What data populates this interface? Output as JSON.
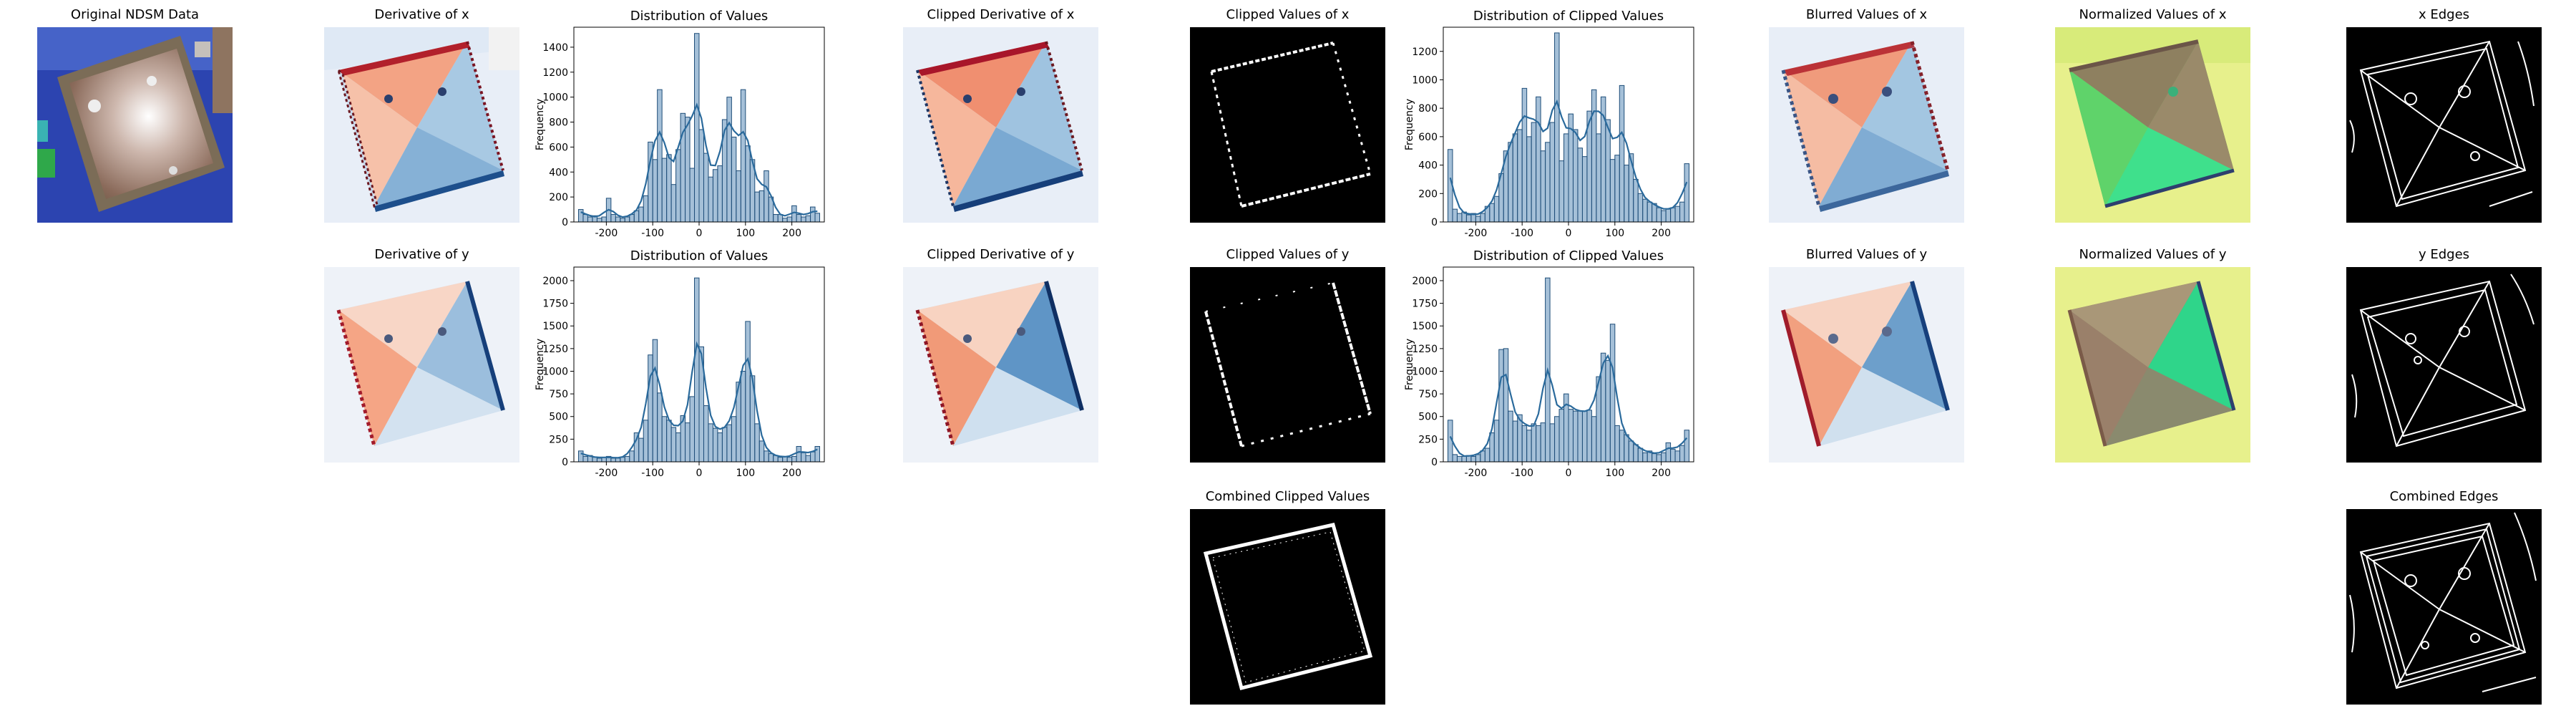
{
  "panels": {
    "original": {
      "title": "Original NDSM Data"
    },
    "deriv_x": {
      "title": "Derivative of x"
    },
    "deriv_y": {
      "title": "Derivative of y"
    },
    "clip_deriv_x": {
      "title": "Clipped Derivative of x"
    },
    "clip_deriv_y": {
      "title": "Clipped Derivative of y"
    },
    "clip_val_x": {
      "title": "Clipped Values  of x"
    },
    "clip_val_y": {
      "title": "Clipped Values  of y"
    },
    "combined_clipped": {
      "title": "Combined Clipped Values"
    },
    "blur_x": {
      "title": "Blurred Values of x"
    },
    "blur_y": {
      "title": "Blurred Values of y"
    },
    "norm_x": {
      "title": "Normalized Values of x"
    },
    "norm_y": {
      "title": "Normalized Values of y"
    },
    "edges_x": {
      "title": "x Edges"
    },
    "edges_y": {
      "title": "y Edges"
    },
    "edges_combined": {
      "title": "Combined Edges"
    }
  },
  "chart_data": [
    {
      "id": "dist_x",
      "type": "bar",
      "title": "Distribution of Values",
      "xlabel": "",
      "ylabel": "Frequency",
      "xlim": [
        -270,
        270
      ],
      "ylim": [
        0,
        1560
      ],
      "xticks": [
        -200,
        -100,
        0,
        100,
        200
      ],
      "yticks": [
        0,
        200,
        400,
        600,
        800,
        1000,
        1200,
        1400
      ],
      "bin_width": 10,
      "x": [
        -255,
        -245,
        -235,
        -225,
        -215,
        -205,
        -195,
        -185,
        -175,
        -165,
        -155,
        -145,
        -135,
        -125,
        -115,
        -105,
        -95,
        -85,
        -75,
        -65,
        -55,
        -45,
        -35,
        -25,
        -15,
        -5,
        5,
        15,
        25,
        35,
        45,
        55,
        65,
        75,
        85,
        95,
        105,
        115,
        125,
        135,
        145,
        155,
        165,
        175,
        185,
        195,
        205,
        215,
        225,
        235,
        245,
        255
      ],
      "values": [
        100,
        60,
        40,
        50,
        30,
        40,
        190,
        60,
        40,
        30,
        40,
        60,
        90,
        120,
        210,
        640,
        500,
        1060,
        510,
        540,
        300,
        580,
        870,
        840,
        430,
        1510,
        740,
        550,
        360,
        420,
        450,
        820,
        1000,
        680,
        410,
        1060,
        610,
        500,
        240,
        250,
        410,
        200,
        60,
        60,
        30,
        40,
        130,
        60,
        40,
        50,
        120,
        70
      ]
    },
    {
      "id": "dist_y",
      "type": "bar",
      "title": "Distribution of Values",
      "xlabel": "",
      "ylabel": "Frequency",
      "xlim": [
        -270,
        270
      ],
      "ylim": [
        0,
        2150
      ],
      "xticks": [
        -200,
        -100,
        0,
        100,
        200
      ],
      "yticks": [
        0,
        250,
        500,
        750,
        1000,
        1250,
        1500,
        1750,
        2000
      ],
      "bin_width": 10,
      "x": [
        -255,
        -245,
        -235,
        -225,
        -215,
        -205,
        -195,
        -185,
        -175,
        -165,
        -155,
        -145,
        -135,
        -125,
        -115,
        -105,
        -95,
        -85,
        -75,
        -65,
        -55,
        -45,
        -35,
        -25,
        -15,
        -5,
        5,
        15,
        25,
        35,
        45,
        55,
        65,
        75,
        85,
        95,
        105,
        115,
        125,
        135,
        145,
        155,
        165,
        175,
        185,
        195,
        205,
        215,
        225,
        235,
        245,
        255
      ],
      "values": [
        120,
        60,
        70,
        50,
        40,
        50,
        60,
        40,
        40,
        50,
        60,
        120,
        320,
        260,
        460,
        1180,
        1350,
        760,
        500,
        460,
        380,
        320,
        510,
        430,
        720,
        2030,
        1270,
        620,
        420,
        370,
        320,
        380,
        410,
        500,
        880,
        1000,
        1550,
        950,
        420,
        230,
        120,
        90,
        70,
        50,
        60,
        50,
        60,
        170,
        100,
        70,
        110,
        170
      ]
    },
    {
      "id": "dist_clip_x",
      "type": "bar",
      "title": "Distribution of Clipped Values",
      "xlabel": "",
      "ylabel": "Frequency",
      "xlim": [
        -270,
        270
      ],
      "ylim": [
        0,
        1370
      ],
      "xticks": [
        -200,
        -100,
        0,
        100,
        200
      ],
      "yticks": [
        0,
        200,
        400,
        600,
        800,
        1000,
        1200
      ],
      "bin_width": 10,
      "x": [
        -255,
        -245,
        -235,
        -225,
        -215,
        -205,
        -195,
        -185,
        -175,
        -165,
        -155,
        -145,
        -135,
        -125,
        -115,
        -105,
        -95,
        -85,
        -75,
        -65,
        -55,
        -45,
        -35,
        -25,
        -15,
        -5,
        5,
        15,
        25,
        35,
        45,
        55,
        65,
        75,
        85,
        95,
        105,
        115,
        125,
        135,
        145,
        155,
        165,
        175,
        185,
        195,
        205,
        215,
        225,
        235,
        245,
        255
      ],
      "values": [
        510,
        90,
        60,
        70,
        50,
        60,
        40,
        60,
        110,
        130,
        180,
        340,
        500,
        560,
        620,
        650,
        940,
        600,
        700,
        880,
        500,
        560,
        700,
        1330,
        430,
        620,
        760,
        650,
        520,
        460,
        780,
        930,
        620,
        880,
        720,
        440,
        470,
        960,
        400,
        480,
        300,
        200,
        160,
        140,
        130,
        100,
        80,
        90,
        100,
        110,
        140,
        410
      ]
    },
    {
      "id": "dist_clip_y",
      "type": "bar",
      "title": "Distribution of Clipped Values",
      "xlabel": "",
      "ylabel": "Frequency",
      "xlim": [
        -270,
        270
      ],
      "ylim": [
        0,
        2150
      ],
      "xticks": [
        -200,
        -100,
        0,
        100,
        200
      ],
      "yticks": [
        0,
        250,
        500,
        750,
        1000,
        1250,
        1500,
        1750,
        2000
      ],
      "bin_width": 10,
      "x": [
        -255,
        -245,
        -235,
        -225,
        -215,
        -205,
        -195,
        -185,
        -175,
        -165,
        -155,
        -145,
        -135,
        -125,
        -115,
        -105,
        -95,
        -85,
        -75,
        -65,
        -55,
        -45,
        -35,
        -25,
        -15,
        -5,
        5,
        15,
        25,
        35,
        45,
        55,
        65,
        75,
        85,
        95,
        105,
        115,
        125,
        135,
        145,
        155,
        165,
        175,
        185,
        195,
        205,
        215,
        225,
        235,
        245,
        255
      ],
      "values": [
        460,
        80,
        60,
        60,
        70,
        60,
        80,
        120,
        150,
        320,
        460,
        1240,
        1250,
        560,
        450,
        520,
        400,
        350,
        420,
        400,
        430,
        2030,
        420,
        500,
        580,
        750,
        580,
        560,
        560,
        560,
        570,
        500,
        940,
        1200,
        1120,
        1520,
        400,
        350,
        300,
        230,
        190,
        150,
        100,
        120,
        90,
        80,
        100,
        210,
        140,
        120,
        180,
        350
      ]
    }
  ],
  "colors": {
    "hist_bar": "#5b8db8",
    "hist_edge": "#1f4e79",
    "kde_line": "#2a6a9c"
  }
}
